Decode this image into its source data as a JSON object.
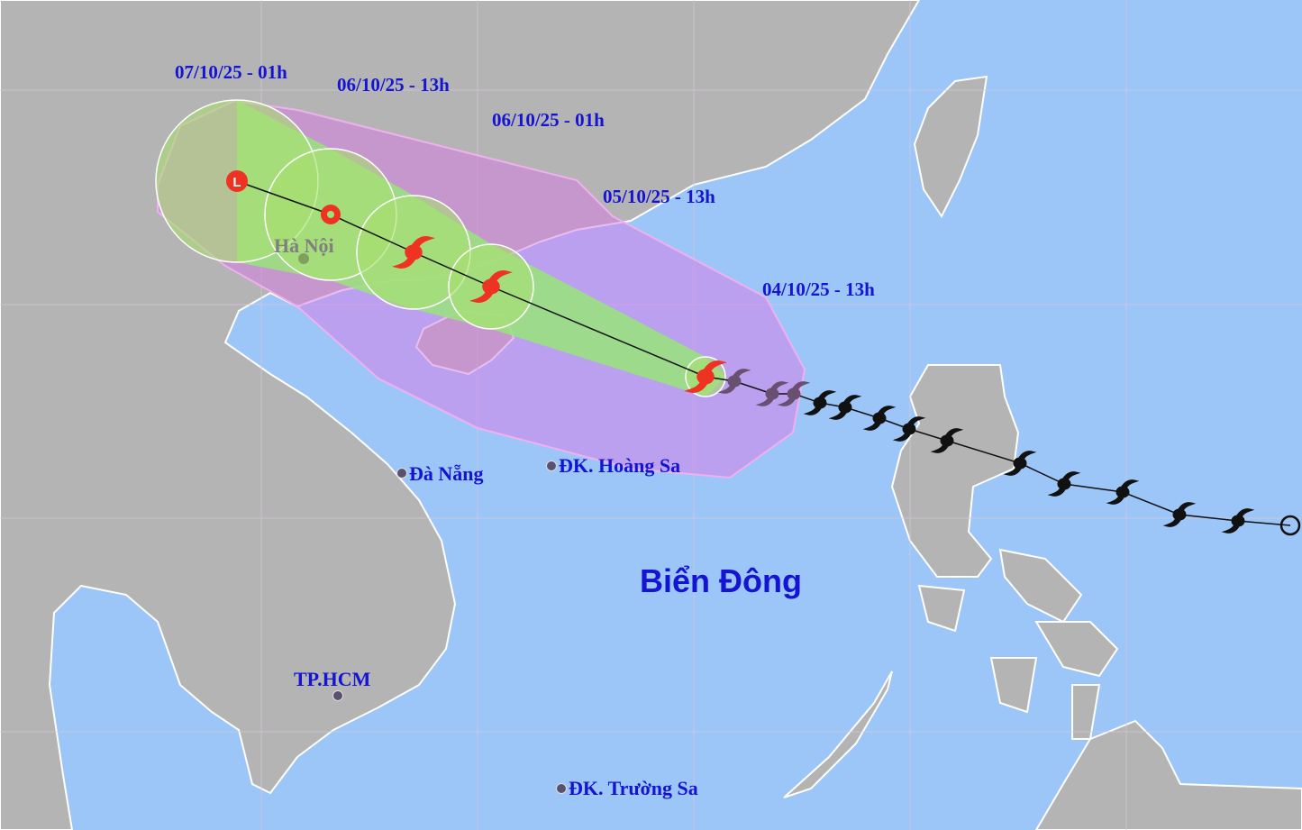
{
  "map": {
    "sea_label": "Biển Đông",
    "forecast_times": [
      "07/10/25 - 01h",
      "06/10/25 - 13h",
      "06/10/25 - 01h",
      "05/10/25 - 13h",
      "04/10/25 - 13h"
    ],
    "cities": {
      "hanoi": "Hà Nội",
      "danang": "Đà Nẵng",
      "hoangsa": "ĐK. Hoàng Sa",
      "hcm": "TP.HCM",
      "truongsa": "ĐK. Trường Sa"
    },
    "icons": {
      "forecast_storm": "typhoon-red-icon",
      "forecast_low": "low-pressure-L-icon",
      "past_track": "typhoon-black-icon",
      "origin": "open-circle-icon"
    },
    "colors": {
      "sea": "#9cc6f8",
      "land": "#b4b4b4",
      "risk_zone": "#d87ae6",
      "cone": "#98e47a",
      "forecast_marker": "#ee3322",
      "label": "#1414d2"
    }
  }
}
